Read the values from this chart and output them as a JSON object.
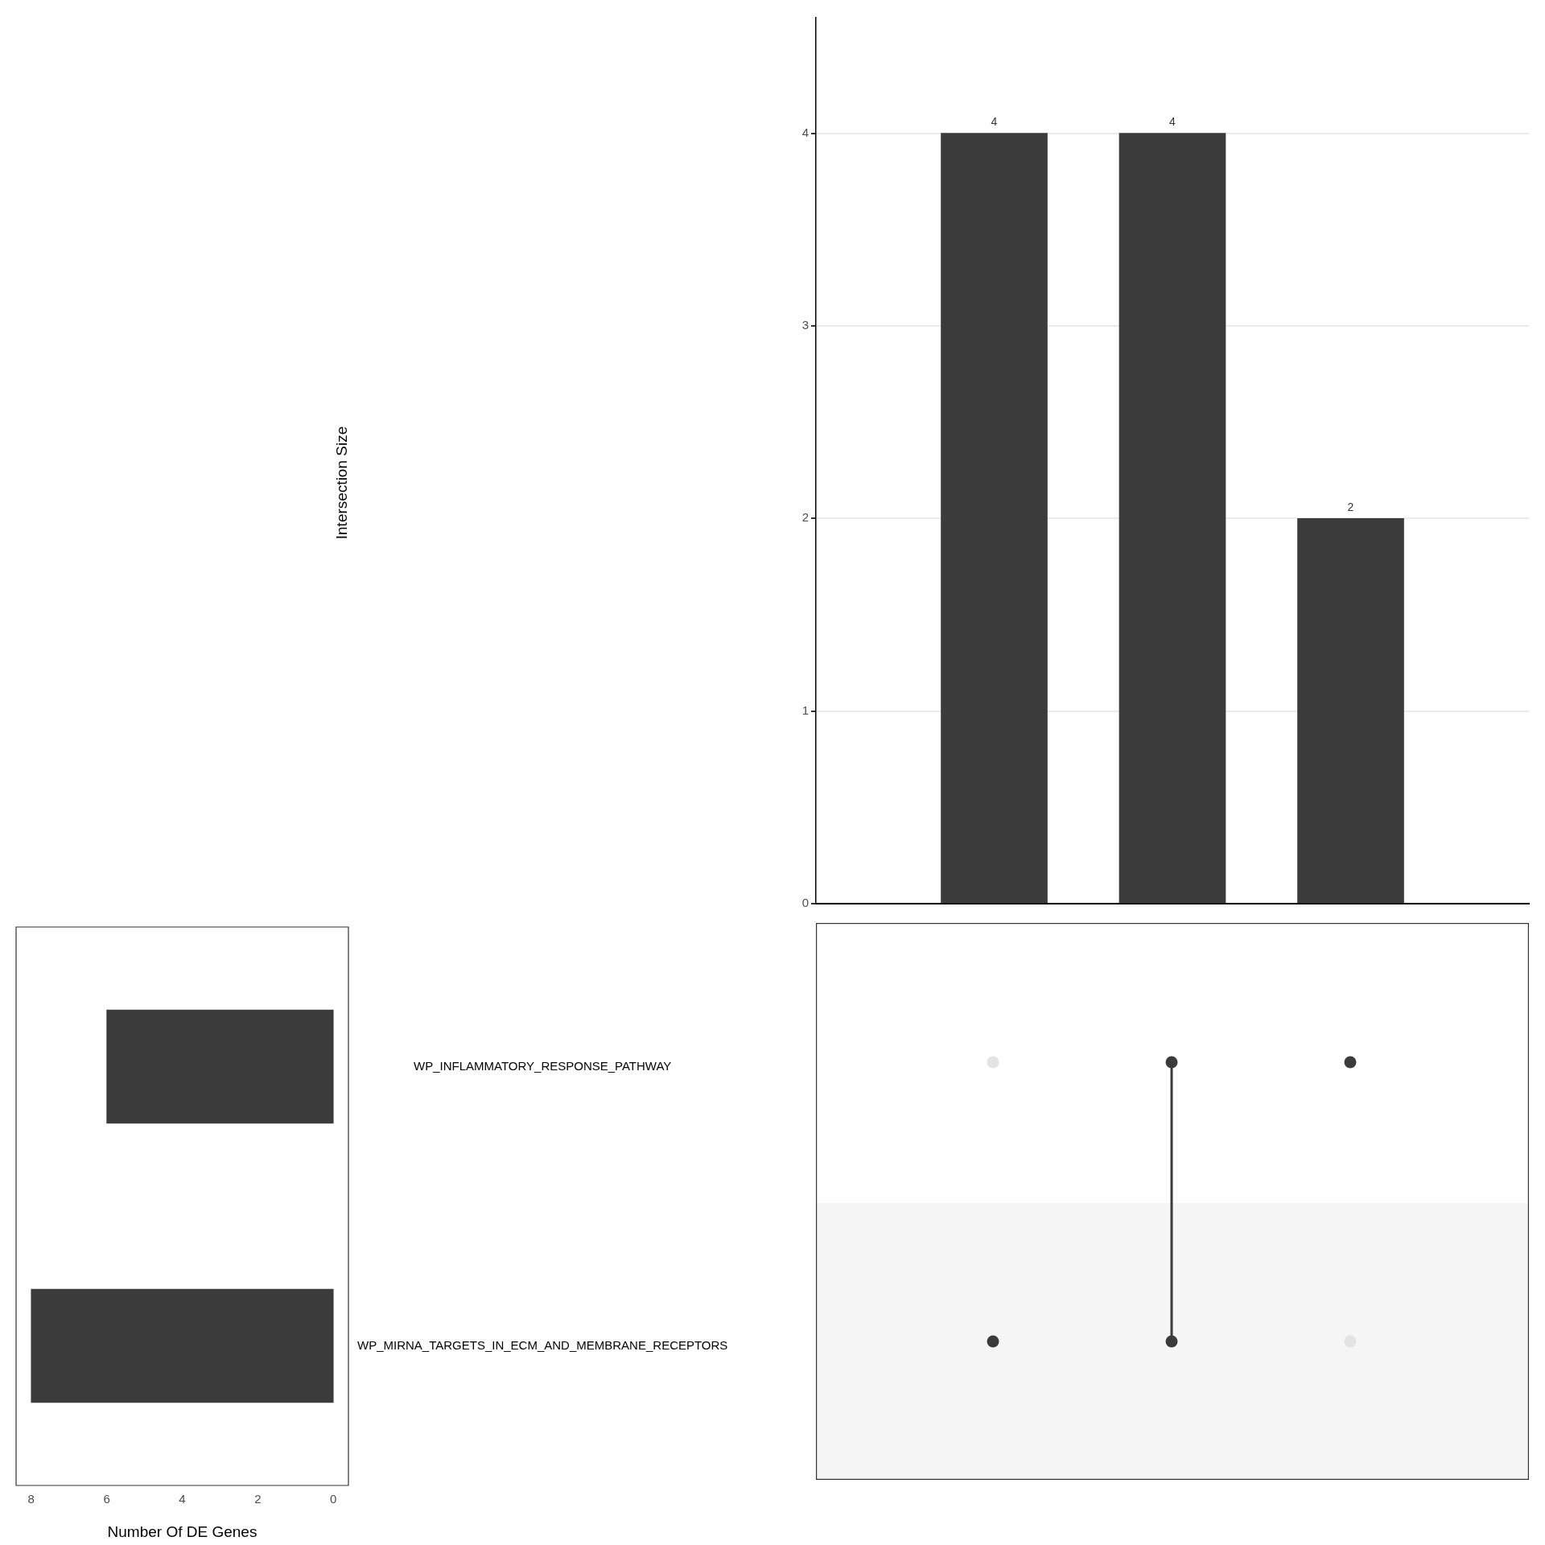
{
  "chart_data": [
    {
      "type": "bar",
      "categories": [
        null,
        null,
        null
      ],
      "values": [
        4,
        4,
        2
      ],
      "color": "#3b3b3b",
      "ylabel": "Intersection Size",
      "ylim": [
        0,
        4.6
      ],
      "yticks": [
        0,
        1,
        2,
        3,
        4
      ],
      "grid": "y",
      "data_labels": true
    },
    {
      "type": "bar",
      "orientation": "horizontal",
      "categories": [
        "WP_INFLAMMATORY_RESPONSE_PATHWAY",
        "WP_MIRNA_TARGETS_IN_ECM_AND_MEMBRANE_RECEPTORS"
      ],
      "values": [
        6,
        8
      ],
      "color": "#3b3b3b",
      "xlabel": "Number Of DE Genes",
      "xlim": [
        8.4,
        -0.4
      ],
      "xticks": [
        8,
        6,
        4,
        2,
        0
      ],
      "grid": false
    }
  ]
}
